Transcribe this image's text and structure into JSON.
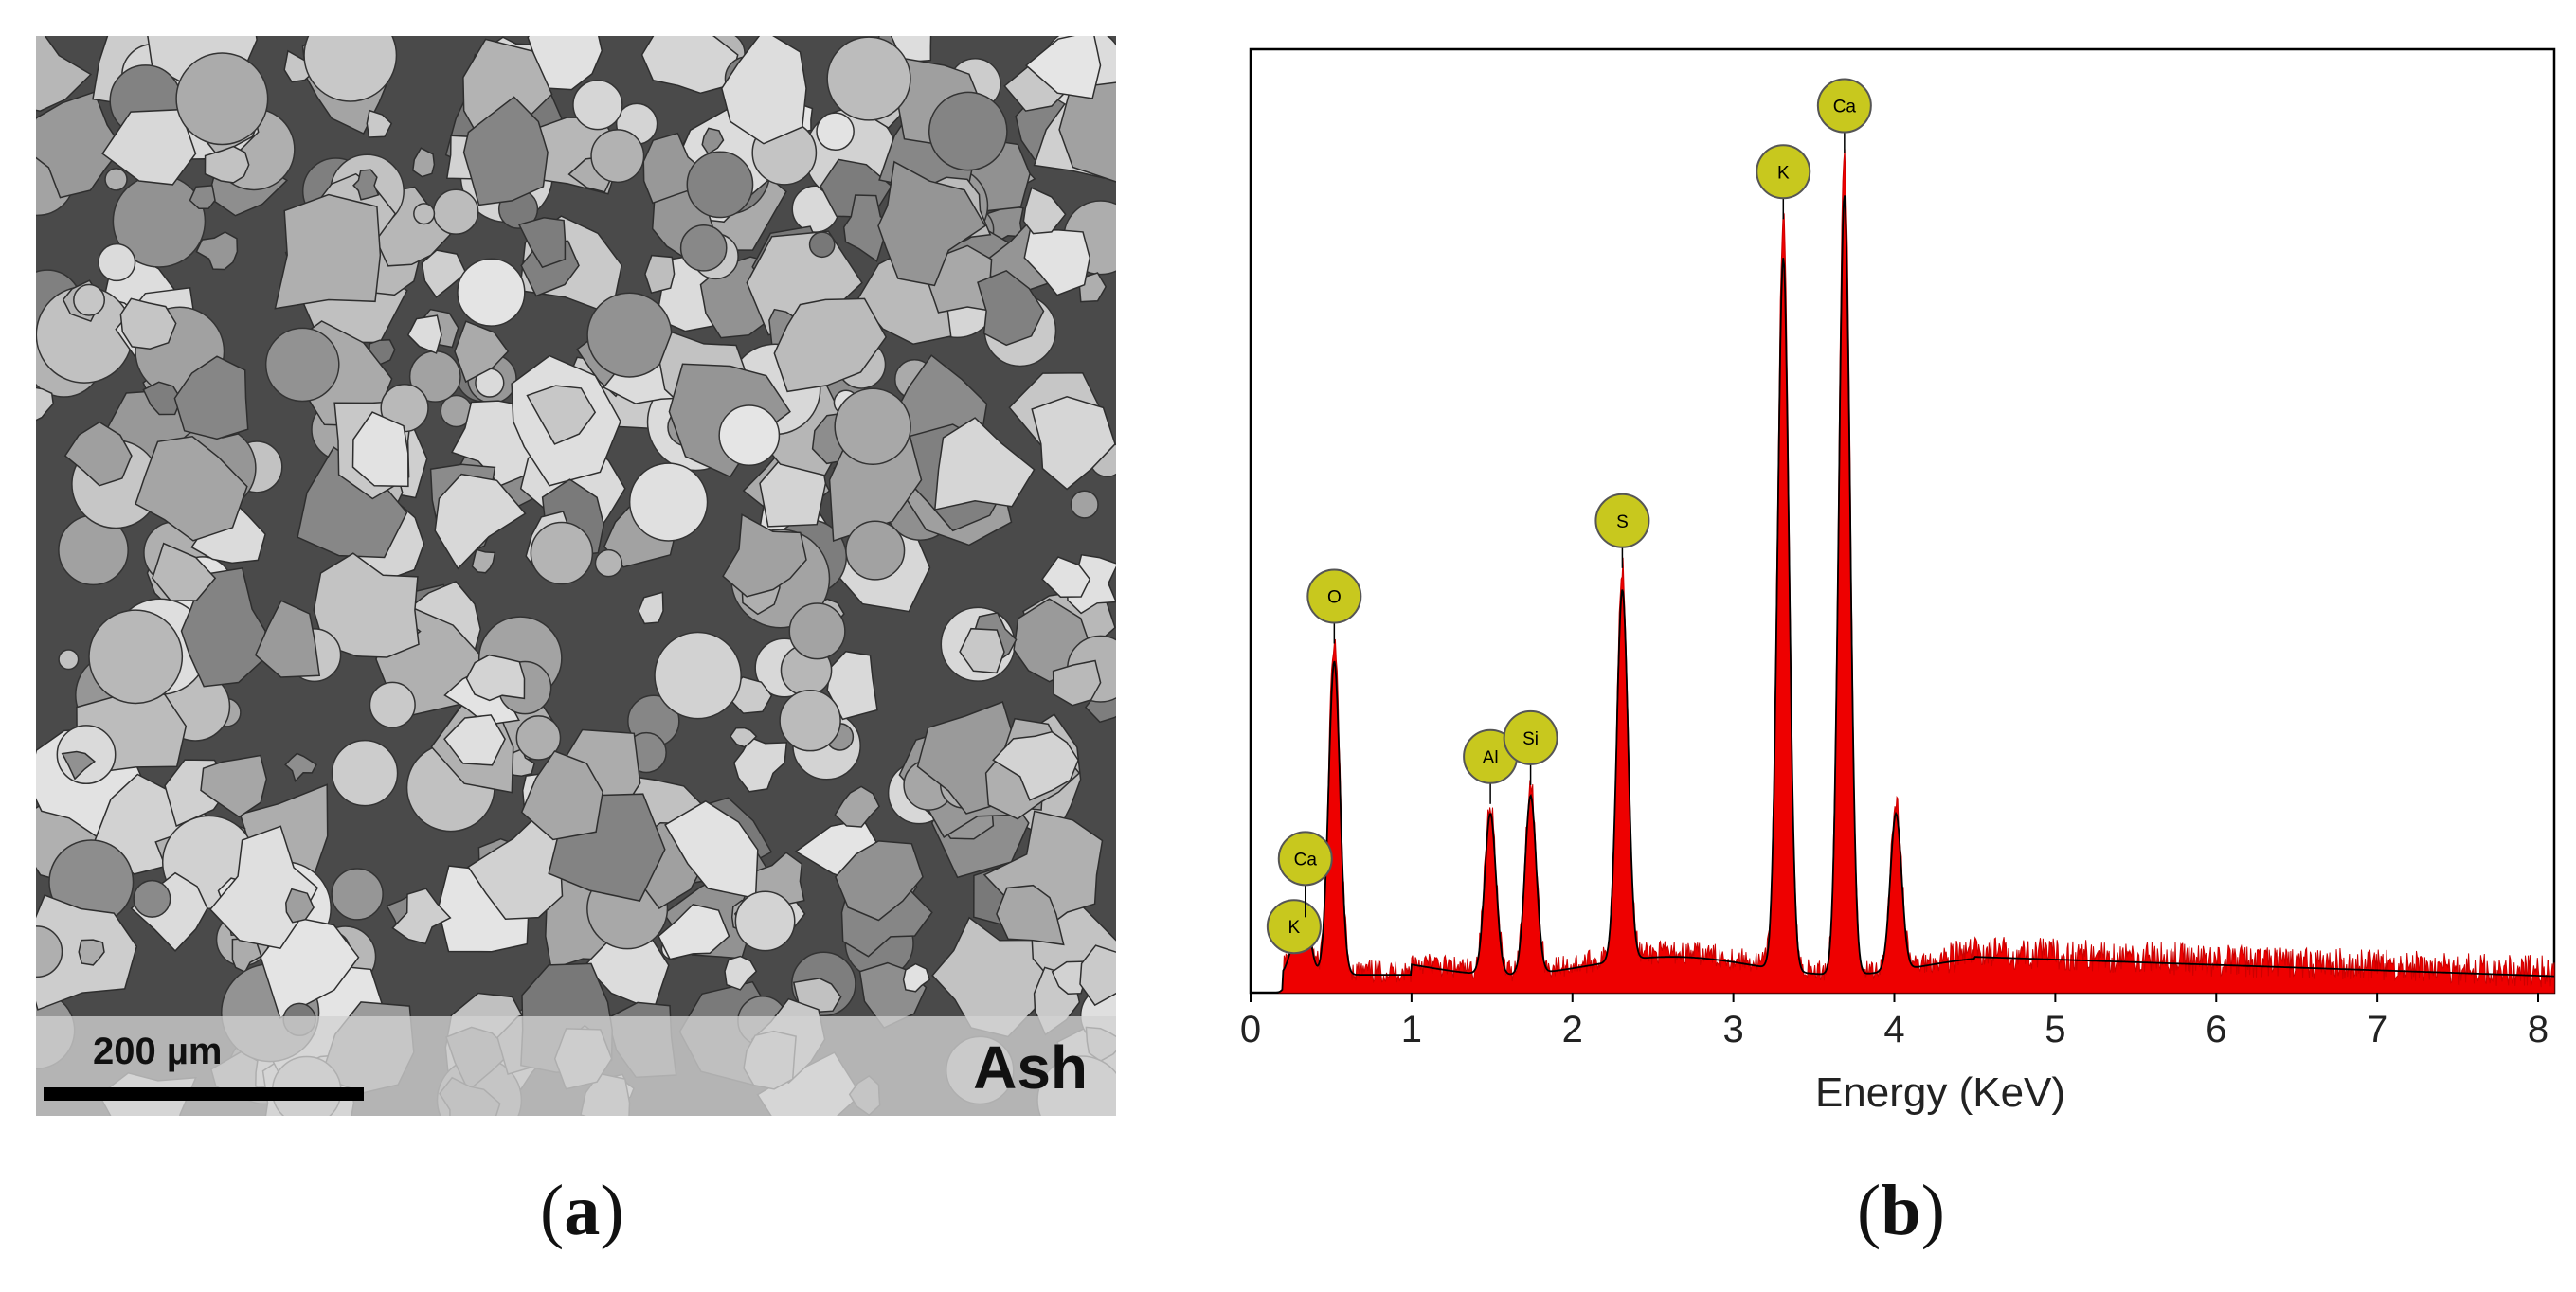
{
  "panel_a": {
    "scale_bar_label": "200 µm",
    "sample_label": "Ash",
    "caption": "a"
  },
  "panel_b": {
    "caption": "b"
  },
  "chart_data": {
    "type": "area",
    "xlabel": "Energy (KeV)",
    "ylabel": "",
    "title": "",
    "xlim": [
      0,
      8.1
    ],
    "ylim": [
      0,
      1
    ],
    "xticks": [
      0,
      1,
      2,
      3,
      4,
      5,
      6,
      7,
      8
    ],
    "grid": false,
    "fill_color": "#ee0000",
    "fit_line_color": "#000000",
    "peak_marker_color": "#c8c81e",
    "peaks": [
      {
        "element": "K",
        "x": 0.27,
        "y": 0.05
      },
      {
        "element": "Ca",
        "x": 0.34,
        "y": 0.08
      },
      {
        "element": "O",
        "x": 0.52,
        "y": 0.37
      },
      {
        "element": "Al",
        "x": 1.49,
        "y": 0.2
      },
      {
        "element": "Si",
        "x": 1.74,
        "y": 0.22
      },
      {
        "element": "S",
        "x": 2.31,
        "y": 0.45
      },
      {
        "element": "K",
        "x": 3.31,
        "y": 0.82
      },
      {
        "element": "Ca",
        "x": 3.69,
        "y": 0.89
      },
      {
        "element": "",
        "x": 4.01,
        "y": 0.2
      }
    ],
    "spectrum": {
      "x": [
        0,
        0.2,
        0.27,
        0.34,
        0.45,
        0.52,
        0.6,
        0.8,
        1.0,
        1.2,
        1.4,
        1.49,
        1.6,
        1.74,
        1.9,
        2.1,
        2.31,
        2.5,
        2.8,
        3.1,
        3.31,
        3.5,
        3.69,
        3.85,
        4.01,
        4.2,
        4.5,
        5.0,
        5.5,
        6.0,
        6.5,
        7.0,
        7.5,
        8.0,
        8.1
      ],
      "y": [
        0,
        0,
        0.05,
        0.08,
        0.03,
        0.37,
        0.03,
        0.02,
        0.02,
        0.025,
        0.03,
        0.2,
        0.04,
        0.22,
        0.04,
        0.03,
        0.45,
        0.04,
        0.03,
        0.04,
        0.82,
        0.05,
        0.89,
        0.05,
        0.2,
        0.04,
        0.035,
        0.03,
        0.028,
        0.026,
        0.024,
        0.022,
        0.02,
        0.018,
        0.015
      ]
    }
  }
}
